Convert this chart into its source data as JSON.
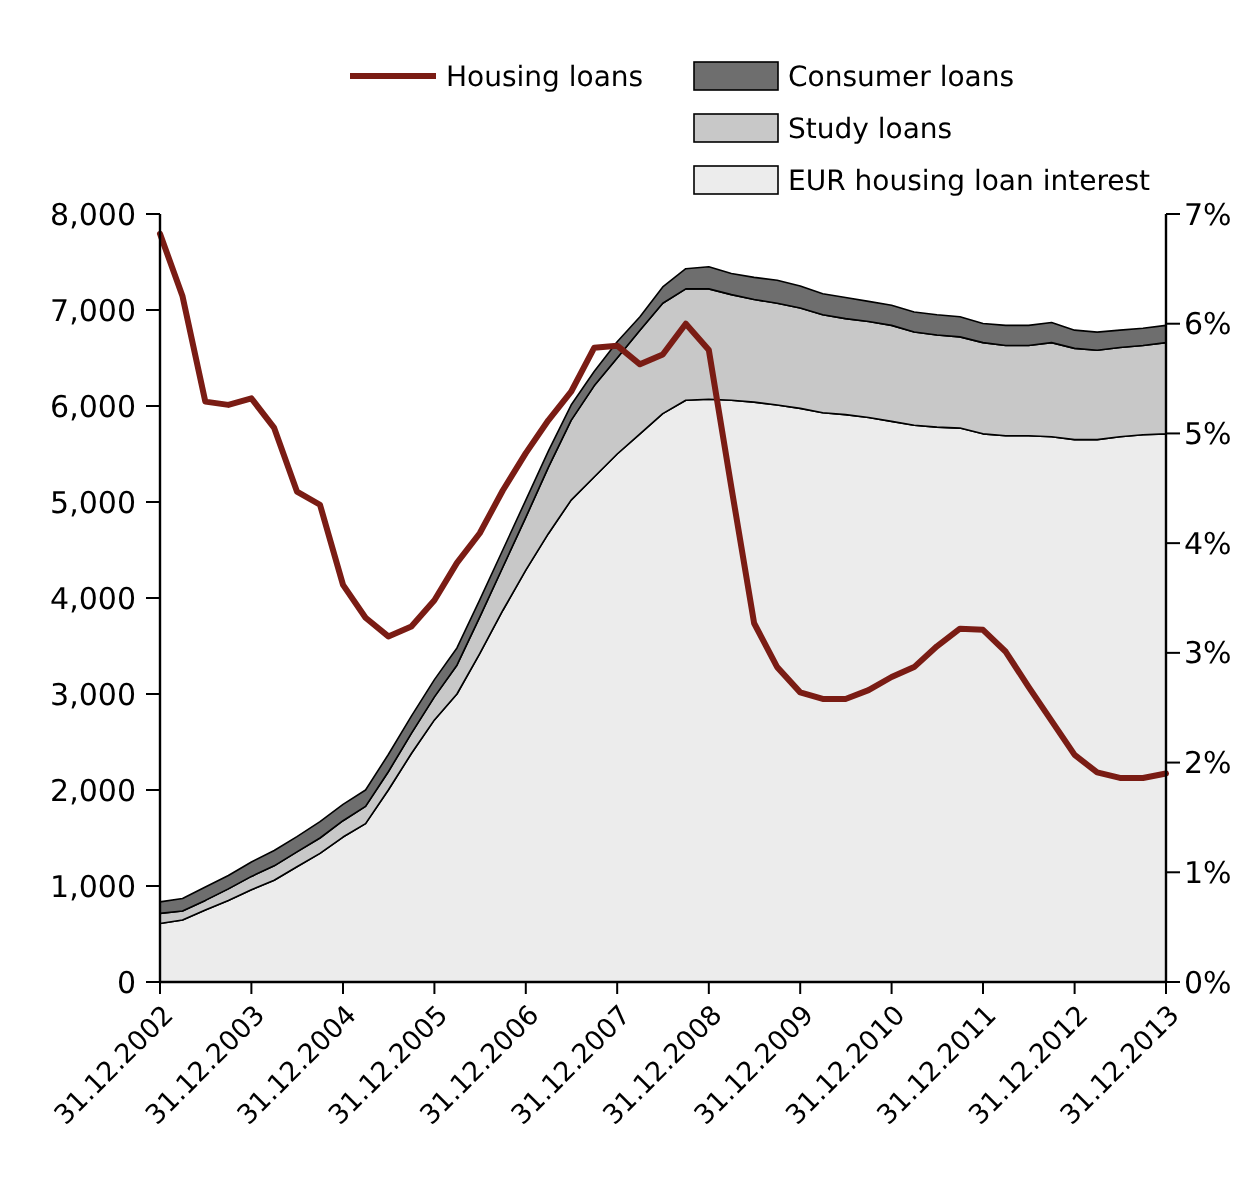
{
  "chart_data": {
    "type": "area",
    "stacked": true,
    "legend": "top",
    "grid": false,
    "x": [
      "2002-12-31",
      "2003-03-31",
      "2003-06-30",
      "2003-09-30",
      "2003-12-31",
      "2004-03-31",
      "2004-06-30",
      "2004-09-30",
      "2004-12-31",
      "2005-03-31",
      "2005-06-30",
      "2005-09-30",
      "2005-12-31",
      "2006-03-31",
      "2006-06-30",
      "2006-09-30",
      "2006-12-31",
      "2007-03-31",
      "2007-06-30",
      "2007-09-30",
      "2007-12-31",
      "2008-03-31",
      "2008-06-30",
      "2008-09-30",
      "2008-12-31",
      "2009-03-31",
      "2009-06-30",
      "2009-09-30",
      "2009-12-31",
      "2010-03-31",
      "2010-06-30",
      "2010-09-30",
      "2010-12-31",
      "2011-03-31",
      "2011-06-30",
      "2011-09-30",
      "2011-12-31",
      "2012-03-31",
      "2012-06-30",
      "2012-09-30",
      "2012-12-31",
      "2013-03-31",
      "2013-06-30",
      "2013-09-30",
      "2013-12-31"
    ],
    "xlim": [
      "2002-12-31",
      "2013-12-31"
    ],
    "xticks": [
      {
        "value": "2002-12-31",
        "label": "31.12.2002"
      },
      {
        "value": "2003-12-31",
        "label": "31.12.2003"
      },
      {
        "value": "2004-12-31",
        "label": "31.12.2004"
      },
      {
        "value": "2005-12-31",
        "label": "31.12.2005"
      },
      {
        "value": "2006-12-31",
        "label": "31.12.2006"
      },
      {
        "value": "2007-12-31",
        "label": "31.12.2007"
      },
      {
        "value": "2008-12-31",
        "label": "31.12.2008"
      },
      {
        "value": "2009-12-31",
        "label": "31.12.2009"
      },
      {
        "value": "2010-12-31",
        "label": "31.12.2010"
      },
      {
        "value": "2011-12-31",
        "label": "31.12.2011"
      },
      {
        "value": "2012-12-31",
        "label": "31.12.2012"
      },
      {
        "value": "2013-12-31",
        "label": "31.12.2013"
      }
    ],
    "ylim": [
      0,
      8000
    ],
    "yticks": [
      {
        "value": 0,
        "label": "0"
      },
      {
        "value": 1000,
        "label": "1,000"
      },
      {
        "value": 2000,
        "label": "2,000"
      },
      {
        "value": 3000,
        "label": "3,000"
      },
      {
        "value": 4000,
        "label": "4,000"
      },
      {
        "value": 5000,
        "label": "5,000"
      },
      {
        "value": 6000,
        "label": "6,000"
      },
      {
        "value": 7000,
        "label": "7,000"
      },
      {
        "value": 8000,
        "label": "8,000"
      }
    ],
    "y2lim": [
      0,
      7
    ],
    "y2ticks": [
      {
        "value": 0,
        "label": "0%"
      },
      {
        "value": 1,
        "label": "1%"
      },
      {
        "value": 2,
        "label": "2%"
      },
      {
        "value": 3,
        "label": "3%"
      },
      {
        "value": 4,
        "label": "4%"
      },
      {
        "value": 5,
        "label": "5%"
      },
      {
        "value": 6,
        "label": "6%"
      },
      {
        "value": 7,
        "label": "7%"
      }
    ],
    "series": [
      {
        "name": "EUR housing loan interest",
        "color": "#ececec",
        "values": [
          610,
          645,
          750,
          850,
          960,
          1060,
          1200,
          1340,
          1510,
          1650,
          2000,
          2380,
          2730,
          3000,
          3420,
          3870,
          4290,
          4670,
          5020,
          5260,
          5500,
          5710,
          5920,
          6060,
          6070,
          6060,
          6040,
          6010,
          5975,
          5930,
          5910,
          5880,
          5840,
          5800,
          5780,
          5770,
          5710,
          5690,
          5690,
          5680,
          5650,
          5650,
          5680,
          5700,
          5710
        ]
      },
      {
        "name": "Study loans",
        "color": "#c8c8c8",
        "values": [
          105,
          95,
          100,
          120,
          140,
          150,
          155,
          160,
          170,
          180,
          190,
          210,
          240,
          300,
          380,
          450,
          550,
          690,
          830,
          950,
          1000,
          1080,
          1150,
          1160,
          1150,
          1100,
          1070,
          1060,
          1045,
          1020,
          1000,
          1000,
          1000,
          970,
          960,
          950,
          950,
          940,
          940,
          980,
          950,
          930,
          930,
          930,
          950
        ]
      },
      {
        "name": "Consumer loans",
        "color": "#6e6e6e",
        "values": [
          120,
          130,
          140,
          140,
          150,
          160,
          160,
          170,
          170,
          170,
          180,
          180,
          180,
          180,
          180,
          180,
          180,
          170,
          160,
          150,
          170,
          140,
          170,
          210,
          230,
          220,
          230,
          240,
          230,
          220,
          220,
          210,
          210,
          210,
          210,
          210,
          200,
          210,
          210,
          210,
          190,
          190,
          180,
          180,
          180
        ]
      },
      {
        "name": "Housing loans",
        "type": "line",
        "axis": "y2",
        "color": "#7a1c14",
        "values": [
          6.82,
          6.25,
          5.29,
          5.26,
          5.32,
          5.05,
          4.47,
          4.35,
          3.62,
          3.32,
          3.15,
          3.24,
          3.48,
          3.82,
          4.09,
          4.48,
          4.82,
          5.12,
          5.38,
          5.78,
          5.8,
          5.63,
          5.72,
          6.0,
          5.76,
          4.51,
          3.27,
          2.87,
          2.64,
          2.58,
          2.58,
          2.66,
          2.78,
          2.87,
          3.06,
          3.22,
          3.21,
          3.01,
          2.69,
          2.38,
          2.07,
          1.91,
          1.86,
          1.86,
          1.9
        ]
      }
    ]
  }
}
